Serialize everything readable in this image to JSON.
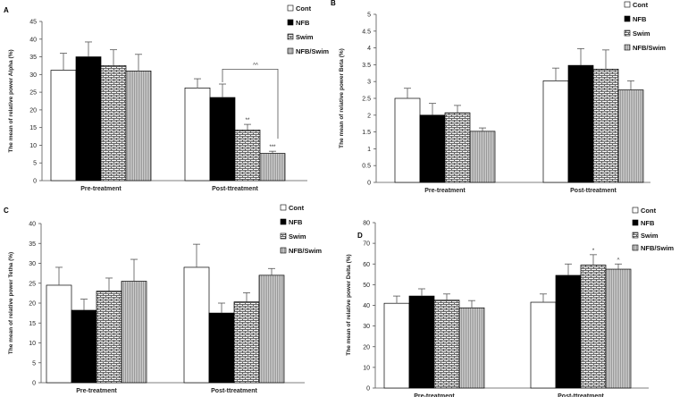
{
  "chart_data": [
    {
      "panel": "A",
      "type": "bar",
      "categories": [
        "Pre-treatment",
        "Post-ttreatment"
      ],
      "series": [
        {
          "name": "Cont",
          "values": [
            31.2,
            26.2
          ],
          "errors": [
            4.8,
            2.6
          ],
          "annotations": [
            "",
            ""
          ]
        },
        {
          "name": "NFB",
          "values": [
            35.0,
            23.5
          ],
          "errors": [
            4.2,
            3.8
          ],
          "annotations": [
            "",
            ""
          ]
        },
        {
          "name": "Swim",
          "values": [
            32.5,
            14.3
          ],
          "errors": [
            4.5,
            1.6
          ],
          "annotations": [
            "",
            "**"
          ]
        },
        {
          "name": "NFB/Swim",
          "values": [
            31.0,
            7.7
          ],
          "errors": [
            4.7,
            0.6
          ],
          "annotations": [
            "",
            "***"
          ]
        }
      ],
      "bracket": {
        "from_series": 1,
        "to_series": 3,
        "category": 1,
        "level": 31.5,
        "label": "^^"
      },
      "ylabel": "The mean of relative power Alpha (%)",
      "ylim": [
        0,
        45
      ],
      "yticks": [
        0,
        5,
        10,
        15,
        20,
        25,
        30,
        35,
        40,
        45
      ]
    },
    {
      "panel": "B",
      "type": "bar",
      "categories": [
        "Pre-treatment",
        "Post-ttreatment"
      ],
      "series": [
        {
          "name": "Cont",
          "values": [
            2.5,
            3.02
          ],
          "errors": [
            0.3,
            0.38
          ],
          "annotations": [
            "",
            ""
          ]
        },
        {
          "name": "NFB",
          "values": [
            2.0,
            3.48
          ],
          "errors": [
            0.35,
            0.5
          ],
          "annotations": [
            "",
            ""
          ]
        },
        {
          "name": "Swim",
          "values": [
            2.07,
            3.37
          ],
          "errors": [
            0.22,
            0.57
          ],
          "annotations": [
            "",
            ""
          ]
        },
        {
          "name": "NFB/Swim",
          "values": [
            1.52,
            2.75
          ],
          "errors": [
            0.1,
            0.27
          ],
          "annotations": [
            "",
            ""
          ]
        }
      ],
      "ylabel": "The mean of relative power Beta (%)",
      "ylim": [
        0,
        5
      ],
      "yticks": [
        0,
        0.5,
        1,
        1.5,
        2,
        2.5,
        3,
        3.5,
        4,
        4.5,
        5
      ]
    },
    {
      "panel": "C",
      "type": "bar",
      "categories": [
        "Pre-treatment",
        "Post-ttreatment"
      ],
      "series": [
        {
          "name": "Cont",
          "values": [
            24.5,
            29.0
          ],
          "errors": [
            4.5,
            5.8
          ],
          "annotations": [
            "",
            ""
          ]
        },
        {
          "name": "NFB",
          "values": [
            18.2,
            17.5
          ],
          "errors": [
            2.8,
            2.5
          ],
          "annotations": [
            "",
            ""
          ]
        },
        {
          "name": "Swim",
          "values": [
            23.0,
            20.3
          ],
          "errors": [
            3.3,
            2.3
          ],
          "annotations": [
            "",
            ""
          ]
        },
        {
          "name": "NFB/Swim",
          "values": [
            25.5,
            27.0
          ],
          "errors": [
            5.5,
            1.7
          ],
          "annotations": [
            "",
            ""
          ]
        }
      ],
      "ylabel": "The mean of relative power Tetha (%)",
      "ylim": [
        0,
        40
      ],
      "yticks": [
        0,
        5,
        10,
        15,
        20,
        25,
        30,
        35,
        40
      ]
    },
    {
      "panel": "D",
      "type": "bar",
      "categories": [
        "Pre-treatment",
        "Post-ttreatment"
      ],
      "series": [
        {
          "name": "Cont",
          "values": [
            41.0,
            41.5
          ],
          "errors": [
            3.5,
            4.0
          ],
          "annotations": [
            "",
            ""
          ]
        },
        {
          "name": "NFB",
          "values": [
            44.5,
            54.5
          ],
          "errors": [
            3.5,
            5.5
          ],
          "annotations": [
            "",
            ""
          ]
        },
        {
          "name": "Swim",
          "values": [
            42.5,
            59.5
          ],
          "errors": [
            3.0,
            5.0
          ],
          "annotations": [
            "",
            "*"
          ]
        },
        {
          "name": "NFB/Swim",
          "values": [
            38.8,
            57.5
          ],
          "errors": [
            3.5,
            2.5
          ],
          "annotations": [
            "",
            "^"
          ]
        }
      ],
      "ylabel": "The mean of relative power Delta (%)",
      "ylim": [
        0,
        80
      ],
      "yticks": [
        0,
        10,
        20,
        30,
        40,
        50,
        60,
        70,
        80
      ]
    }
  ]
}
